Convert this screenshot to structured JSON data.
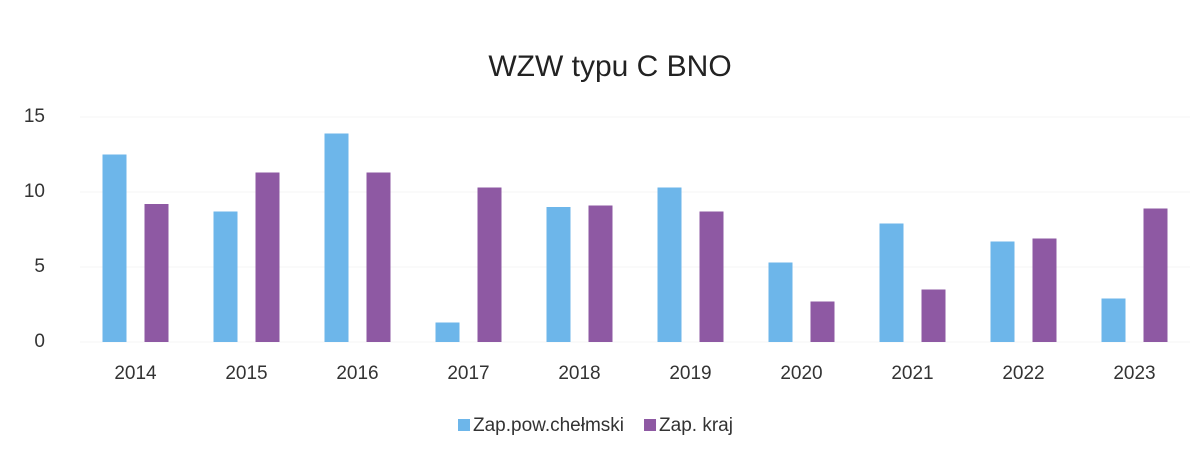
{
  "chart_data": {
    "type": "bar",
    "title": "WZW typu C BNO",
    "categories": [
      "2014",
      "2015",
      "2016",
      "2017",
      "2018",
      "2019",
      "2020",
      "2021",
      "2022",
      "2023"
    ],
    "series": [
      {
        "name": "Zap.pow.chełmski",
        "color": "#6db6ea",
        "values": [
          12.5,
          8.7,
          13.9,
          1.3,
          9.0,
          10.3,
          5.3,
          7.9,
          6.7,
          2.9
        ]
      },
      {
        "name": "Zap. kraj",
        "color": "#8e59a3",
        "values": [
          9.2,
          11.3,
          11.3,
          10.3,
          9.1,
          8.7,
          2.7,
          3.5,
          6.9,
          8.9
        ]
      }
    ],
    "ylim": [
      0,
      15
    ],
    "yticks": [
      0,
      5,
      10,
      15
    ],
    "legend": "bottom"
  }
}
